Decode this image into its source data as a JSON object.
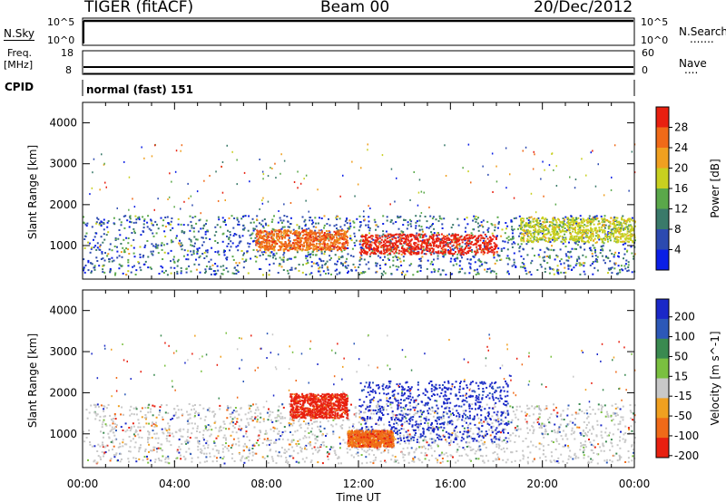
{
  "header": {
    "station": "TIGER (fitACF)",
    "beam": "Beam 00",
    "date": "20/Dec/2012"
  },
  "top_panels": {
    "nsky": {
      "label": "N.Sky",
      "left_ticks": [
        "10^5",
        "10^0"
      ],
      "right_ticks": [
        "10^5",
        "10^0"
      ],
      "right_label": "N.Search",
      "right_dots": "......."
    },
    "freq": {
      "label_line1": "Freq.",
      "label_line2": "[MHz]",
      "left_ticks": [
        "18",
        "8"
      ],
      "right_ticks": [
        "60",
        "0"
      ],
      "right_label": "Nave",
      "right_dots": "...."
    },
    "cpid": {
      "label": "CPID",
      "value": "normal (fast) 151"
    }
  },
  "chart_data": [
    {
      "type": "heatmap",
      "panel": "power",
      "ylabel": "Slant Range [km]",
      "xlabel": "",
      "xlim": [
        "00:00",
        "24:00"
      ],
      "ylim": [
        180,
        4500
      ],
      "ytick_labels": [
        "1000",
        "2000",
        "3000",
        "4000"
      ],
      "xtick_labels": [
        "00:00",
        "04:00",
        "08:00",
        "12:00",
        "16:00",
        "20:00",
        "00:00"
      ],
      "colorbar": {
        "label": "Power [dB]",
        "ticks": [
          "4",
          "8",
          "12",
          "16",
          "20",
          "24",
          "28"
        ],
        "colors": [
          "#0a1ee6",
          "#2c4ab0",
          "#3a7a6a",
          "#5aa84a",
          "#c8d020",
          "#f0a020",
          "#f06a18",
          "#e82010"
        ]
      },
      "regions": [
        {
          "t_start": "00:00",
          "t_end": "24:00",
          "range_km": [
            300,
            1750
          ],
          "power_db": 6
        },
        {
          "t_start": "07:30",
          "t_end": "11:30",
          "range_km": [
            900,
            1400
          ],
          "power_db": 24
        },
        {
          "t_start": "12:00",
          "t_end": "18:00",
          "range_km": [
            800,
            1300
          ],
          "power_db": 28
        },
        {
          "t_start": "19:00",
          "t_end": "24:00",
          "range_km": [
            1100,
            1700
          ],
          "power_db": 14
        }
      ]
    },
    {
      "type": "heatmap",
      "panel": "velocity",
      "ylabel": "Slant Range [km]",
      "xlabel": "Time UT",
      "xlim": [
        "00:00",
        "24:00"
      ],
      "ylim": [
        180,
        4500
      ],
      "ytick_labels": [
        "1000",
        "2000",
        "3000",
        "4000"
      ],
      "xtick_labels": [
        "00:00",
        "04:00",
        "08:00",
        "12:00",
        "16:00",
        "20:00",
        "00:00"
      ],
      "colorbar": {
        "label": "Velocity [m s^-1]",
        "ticks": [
          "200",
          "100",
          "50",
          "15",
          "-15",
          "-50",
          "-100",
          "-200"
        ],
        "colors": [
          "#1a28c8",
          "#2c58b8",
          "#3a8a50",
          "#7ac040",
          "#c8c8c8",
          "#f0a020",
          "#f06a18",
          "#e82010"
        ]
      },
      "regions": [
        {
          "t_start": "00:00",
          "t_end": "24:00",
          "range_km": [
            300,
            1750
          ],
          "velocity": 0
        },
        {
          "t_start": "09:00",
          "t_end": "11:30",
          "range_km": [
            1400,
            2000
          ],
          "velocity": -200
        },
        {
          "t_start": "12:00",
          "t_end": "18:30",
          "range_km": [
            800,
            2300
          ],
          "velocity": 150
        },
        {
          "t_start": "11:30",
          "t_end": "13:30",
          "range_km": [
            700,
            1100
          ],
          "velocity": -80
        }
      ]
    }
  ]
}
